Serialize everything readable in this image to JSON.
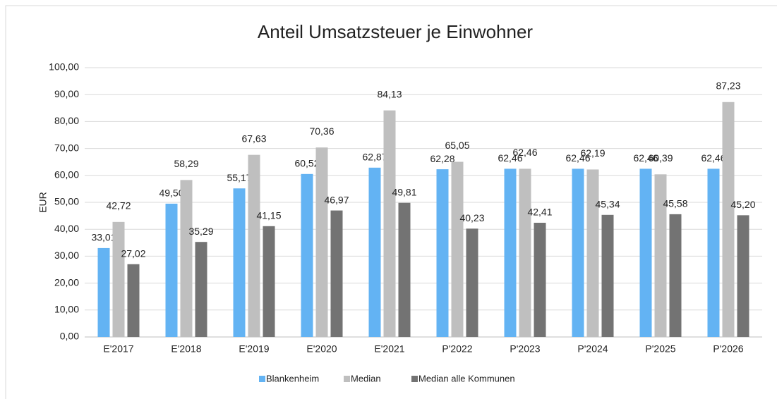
{
  "chart_data": {
    "type": "bar",
    "title": "Anteil Umsatzsteuer je Einwohner",
    "y_label": "EUR",
    "categories": [
      "E'2017",
      "E'2018",
      "E'2019",
      "E'2020",
      "E'2021",
      "P'2022",
      "P'2023",
      "P'2024",
      "P'2025",
      "P'2026"
    ],
    "series": [
      {
        "name": "Blankenheim",
        "color": "#63b3f3",
        "values": [
          33.01,
          49.5,
          55.17,
          60.52,
          62.87,
          62.28,
          62.46,
          62.46,
          62.46,
          62.46
        ],
        "value_labels": [
          "33,01",
          "49,50",
          "55,17",
          "60,52",
          "62,87",
          "62,28",
          "62,46",
          "62,46",
          "62,46",
          "62,46"
        ]
      },
      {
        "name": "Median",
        "color": "#bfbfbf",
        "values": [
          42.72,
          58.29,
          67.63,
          70.36,
          84.13,
          65.05,
          62.46,
          62.19,
          60.39,
          87.23
        ],
        "value_labels": [
          "42,72",
          "58,29",
          "67,63",
          "70,36",
          "84,13",
          "65,05",
          "62,46",
          "62,19",
          "60,39",
          "87,23"
        ]
      },
      {
        "name": "Median alle Kommunen",
        "color": "#737373",
        "values": [
          27.02,
          35.29,
          41.15,
          46.97,
          49.81,
          40.23,
          42.41,
          45.34,
          45.58,
          45.2
        ],
        "value_labels": [
          "27,02",
          "35,29",
          "41,15",
          "46,97",
          "49,81",
          "40,23",
          "42,41",
          "45,34",
          "45,58",
          "45,20"
        ]
      }
    ],
    "ylim": [
      0,
      100
    ],
    "yticks": [
      {
        "value": 0,
        "label": "0,00"
      },
      {
        "value": 10,
        "label": "10,00"
      },
      {
        "value": 20,
        "label": "20,00"
      },
      {
        "value": 30,
        "label": "30,00"
      },
      {
        "value": 40,
        "label": "40,00"
      },
      {
        "value": 50,
        "label": "50,00"
      },
      {
        "value": 60,
        "label": "60,00"
      },
      {
        "value": 70,
        "label": "70,00"
      },
      {
        "value": 80,
        "label": "80,00"
      },
      {
        "value": 90,
        "label": "90,00"
      },
      {
        "value": 100,
        "label": "100,00"
      }
    ],
    "grid": true,
    "legend": "bottom"
  }
}
